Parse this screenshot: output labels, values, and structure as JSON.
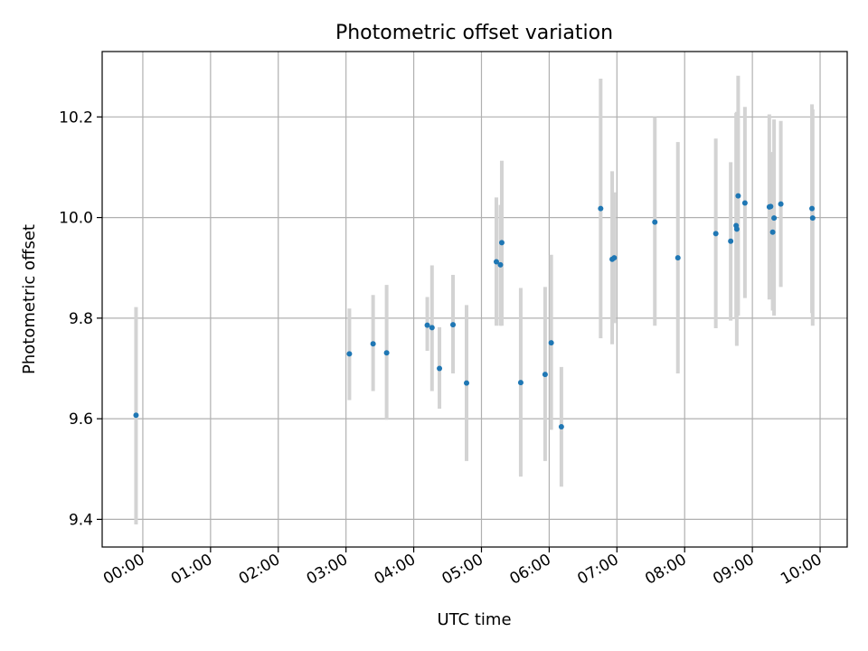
{
  "chart_data": {
    "type": "scatter",
    "title": "Photometric offset variation",
    "xlabel": "UTC time",
    "ylabel": "Photometric offset",
    "x_unit": "hours UTC",
    "xlim": [
      -0.6,
      10.4
    ],
    "ylim": [
      9.345,
      10.33
    ],
    "grid": true,
    "x_ticks": [
      {
        "value": 0,
        "label": "00:00"
      },
      {
        "value": 1,
        "label": "01:00"
      },
      {
        "value": 2,
        "label": "02:00"
      },
      {
        "value": 3,
        "label": "03:00"
      },
      {
        "value": 4,
        "label": "04:00"
      },
      {
        "value": 5,
        "label": "05:00"
      },
      {
        "value": 6,
        "label": "06:00"
      },
      {
        "value": 7,
        "label": "07:00"
      },
      {
        "value": 8,
        "label": "08:00"
      },
      {
        "value": 9,
        "label": "09:00"
      },
      {
        "value": 10,
        "label": "10:00"
      }
    ],
    "y_ticks": [
      {
        "value": 9.4,
        "label": "9.4"
      },
      {
        "value": 9.6,
        "label": "9.6"
      },
      {
        "value": 9.8,
        "label": "9.8"
      },
      {
        "value": 10.0,
        "label": "10.0"
      },
      {
        "value": 10.2,
        "label": "10.2"
      }
    ],
    "colors": {
      "marker": "#1f77b4",
      "errorbar": "#d3d3d3",
      "grid": "#b0b0b0"
    },
    "points": [
      {
        "x": -0.1,
        "y": 9.607,
        "ylo": 9.39,
        "yhi": 9.822
      },
      {
        "x": 3.05,
        "y": 9.729,
        "ylo": 9.637,
        "yhi": 9.819
      },
      {
        "x": 3.4,
        "y": 9.749,
        "ylo": 9.655,
        "yhi": 9.846
      },
      {
        "x": 3.6,
        "y": 9.731,
        "ylo": 9.598,
        "yhi": 9.866
      },
      {
        "x": 4.2,
        "y": 9.786,
        "ylo": 9.735,
        "yhi": 9.842
      },
      {
        "x": 4.27,
        "y": 9.781,
        "ylo": 9.655,
        "yhi": 9.905
      },
      {
        "x": 4.38,
        "y": 9.7,
        "ylo": 9.62,
        "yhi": 9.782
      },
      {
        "x": 4.58,
        "y": 9.787,
        "ylo": 9.69,
        "yhi": 9.886
      },
      {
        "x": 4.78,
        "y": 9.671,
        "ylo": 9.516,
        "yhi": 9.826
      },
      {
        "x": 5.22,
        "y": 9.912,
        "ylo": 9.785,
        "yhi": 10.04
      },
      {
        "x": 5.28,
        "y": 9.906,
        "ylo": 9.785,
        "yhi": 10.025
      },
      {
        "x": 5.3,
        "y": 9.95,
        "ylo": 9.785,
        "yhi": 10.113
      },
      {
        "x": 5.58,
        "y": 9.672,
        "ylo": 9.485,
        "yhi": 9.86
      },
      {
        "x": 5.94,
        "y": 9.688,
        "ylo": 9.516,
        "yhi": 9.862
      },
      {
        "x": 6.03,
        "y": 9.751,
        "ylo": 9.578,
        "yhi": 9.926
      },
      {
        "x": 6.18,
        "y": 9.584,
        "ylo": 9.465,
        "yhi": 9.703
      },
      {
        "x": 6.76,
        "y": 10.018,
        "ylo": 9.76,
        "yhi": 10.276
      },
      {
        "x": 6.93,
        "y": 9.917,
        "ylo": 9.748,
        "yhi": 10.092
      },
      {
        "x": 6.96,
        "y": 9.92,
        "ylo": 9.79,
        "yhi": 10.05
      },
      {
        "x": 7.56,
        "y": 9.991,
        "ylo": 9.785,
        "yhi": 10.2
      },
      {
        "x": 7.9,
        "y": 9.92,
        "ylo": 9.69,
        "yhi": 10.15
      },
      {
        "x": 8.46,
        "y": 9.968,
        "ylo": 9.78,
        "yhi": 10.157
      },
      {
        "x": 8.68,
        "y": 9.953,
        "ylo": 9.795,
        "yhi": 10.11
      },
      {
        "x": 8.76,
        "y": 9.984,
        "ylo": 9.8,
        "yhi": 10.208
      },
      {
        "x": 8.77,
        "y": 9.977,
        "ylo": 9.745,
        "yhi": 10.21
      },
      {
        "x": 8.79,
        "y": 10.043,
        "ylo": 9.805,
        "yhi": 10.282
      },
      {
        "x": 8.89,
        "y": 10.029,
        "ylo": 9.84,
        "yhi": 10.22
      },
      {
        "x": 9.25,
        "y": 10.021,
        "ylo": 9.837,
        "yhi": 10.205
      },
      {
        "x": 9.27,
        "y": 10.022,
        "ylo": 9.91,
        "yhi": 10.13
      },
      {
        "x": 9.3,
        "y": 9.971,
        "ylo": 9.815,
        "yhi": 10.13
      },
      {
        "x": 9.32,
        "y": 9.999,
        "ylo": 9.805,
        "yhi": 10.195
      },
      {
        "x": 9.42,
        "y": 10.027,
        "ylo": 9.862,
        "yhi": 10.192
      },
      {
        "x": 9.88,
        "y": 10.018,
        "ylo": 9.81,
        "yhi": 10.225
      },
      {
        "x": 9.89,
        "y": 9.999,
        "ylo": 9.785,
        "yhi": 10.215
      }
    ]
  }
}
